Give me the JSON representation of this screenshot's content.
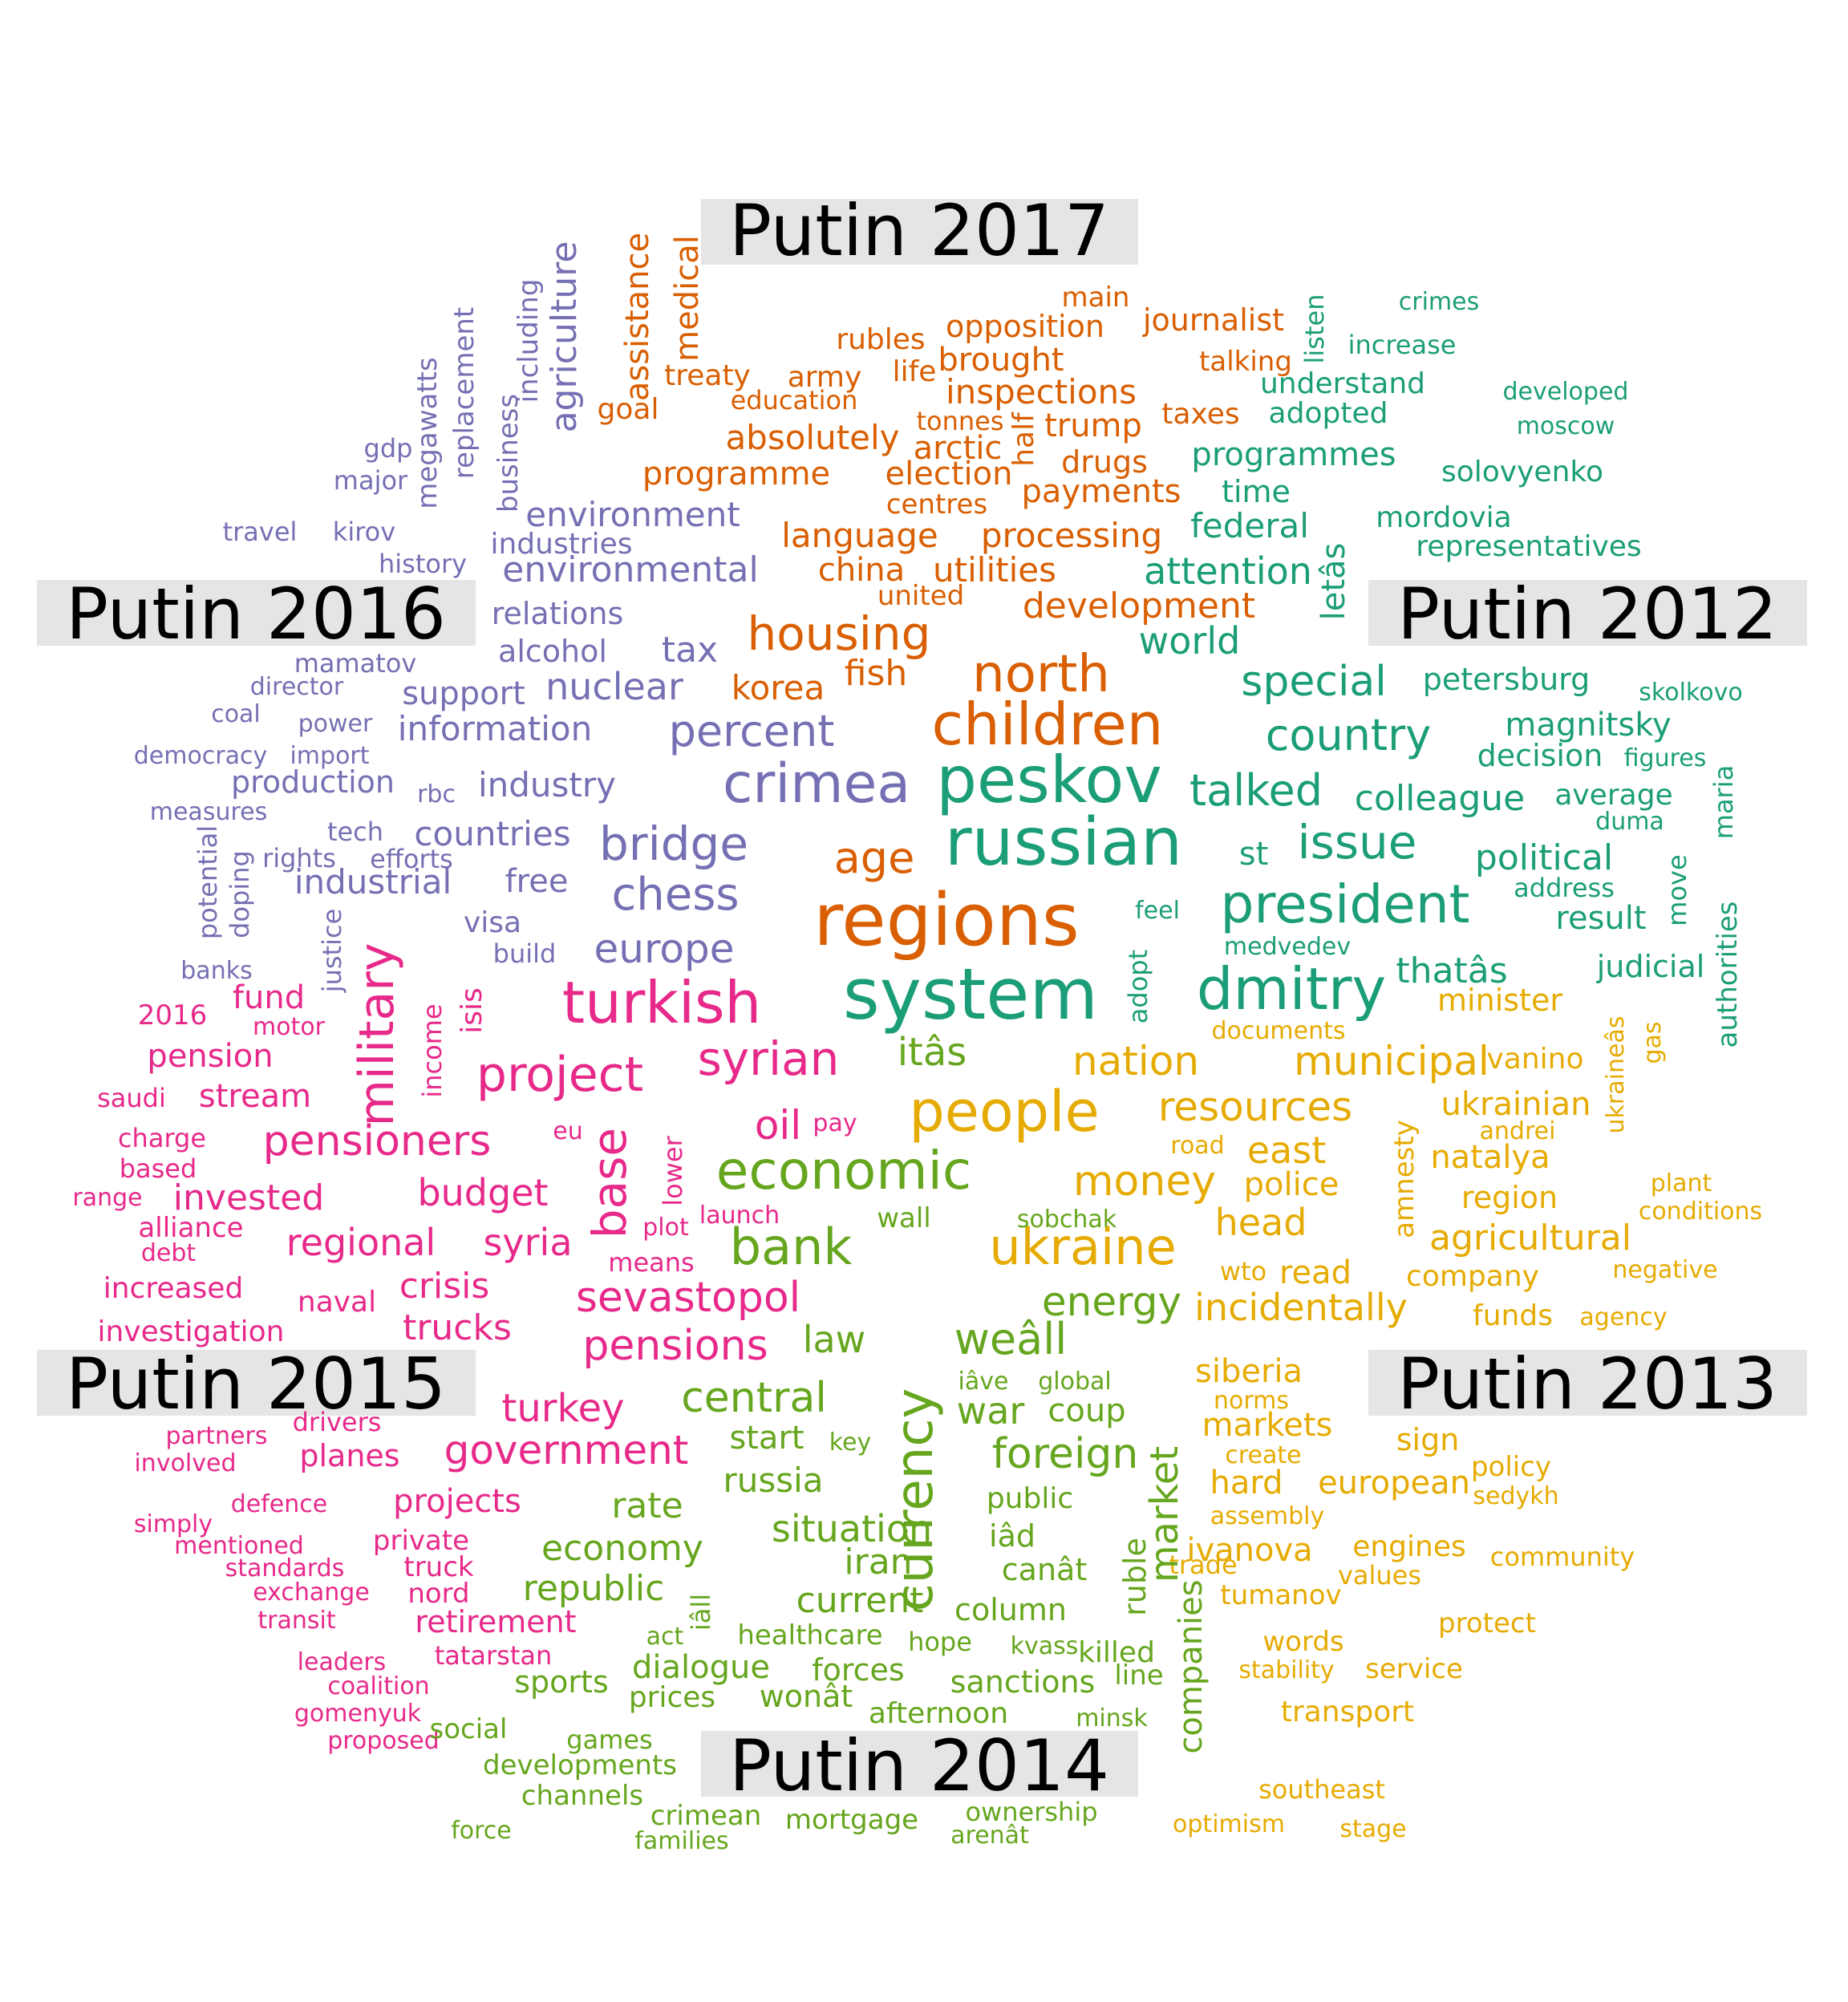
{
  "colors": {
    "y2012": "#1b9e77",
    "y2013": "#e6ab02",
    "y2014": "#66a61e",
    "y2015": "#e7298a",
    "y2016": "#7570b3",
    "y2017": "#d95f02",
    "label_box": "#e5e5e5"
  },
  "labels": [
    {
      "id": "putin-2017-label",
      "text": "Putin 2017"
    },
    {
      "id": "putin-2016-label",
      "text": "Putin 2016"
    },
    {
      "id": "putin-2012-label",
      "text": "Putin 2012"
    },
    {
      "id": "putin-2015-label",
      "text": "Putin 2015"
    },
    {
      "id": "putin-2013-label",
      "text": "Putin 2013"
    },
    {
      "id": "putin-2014-label",
      "text": "Putin 2014"
    }
  ],
  "words": {
    "y2017": [
      "assistance",
      "medical",
      "main",
      "journalist",
      "rubles",
      "opposition",
      "brought",
      "talking",
      "treaty",
      "army",
      "life",
      "inspections",
      "goal",
      "education",
      "tonnes",
      "half",
      "trump",
      "taxes",
      "absolutely",
      "arctic",
      "drugs",
      "programme",
      "election",
      "payments",
      "centres",
      "language",
      "processing",
      "china",
      "utilities",
      "united",
      "development",
      "housing",
      "fish",
      "north",
      "korea",
      "children",
      "age",
      "regions"
    ],
    "y2016": [
      "including",
      "agriculture",
      "replacement",
      "megawatts",
      "business",
      "gdp",
      "major",
      "environment",
      "travel",
      "kirov",
      "industries",
      "history",
      "environmental",
      "relations",
      "alcohol",
      "tax",
      "mamatov",
      "director",
      "support",
      "nuclear",
      "coal",
      "power",
      "information",
      "percent",
      "democracy",
      "import",
      "production",
      "rbc",
      "industry",
      "crimea",
      "measures",
      "tech",
      "countries",
      "bridge",
      "potential",
      "rights",
      "efforts",
      "doping",
      "free",
      "industrial",
      "chess",
      "justice",
      "visa",
      "build",
      "europe",
      "banks"
    ],
    "y2012": [
      "listen",
      "crimes",
      "increase",
      "understand",
      "developed",
      "adopted",
      "moscow",
      "programmes",
      "solovyenko",
      "time",
      "federal",
      "letâs",
      "mordovia",
      "representatives",
      "attention",
      "world",
      "special",
      "petersburg",
      "skolkovo",
      "country",
      "magnitsky",
      "peskov",
      "decision",
      "figures",
      "talked",
      "colleague",
      "average",
      "maria",
      "duma",
      "russian",
      "issue",
      "st",
      "political",
      "move",
      "address",
      "feel",
      "president",
      "result",
      "authorities",
      "medvedev",
      "thatâs",
      "judicial",
      "system",
      "dmitry",
      "adopt"
    ],
    "y2013": [
      "documents",
      "minister",
      "nation",
      "municipal",
      "vanino",
      "ukraineâs",
      "gas",
      "resources",
      "ukrainian",
      "people",
      "andrei",
      "amnesty",
      "road",
      "east",
      "natalya",
      "plant",
      "money",
      "police",
      "conditions",
      "region",
      "head",
      "agricultural",
      "ukraine",
      "wto",
      "read",
      "company",
      "negative",
      "incidentally",
      "funds",
      "agency",
      "siberia",
      "norms",
      "markets",
      "create",
      "sign",
      "hard",
      "european",
      "policy",
      "sedykh",
      "assembly",
      "ivanova",
      "engines",
      "community",
      "trade",
      "values",
      "tumanov",
      "protect",
      "words",
      "stability",
      "service",
      "transport",
      "southeast",
      "optimism",
      "stage"
    ],
    "y2015": [
      "military",
      "income",
      "isis",
      "turkish",
      "2016",
      "fund",
      "motor",
      "pension",
      "project",
      "syrian",
      "saudi",
      "stream",
      "oil",
      "pay",
      "charge",
      "pensioners",
      "eu",
      "base",
      "based",
      "lower",
      "budget",
      "range",
      "invested",
      "alliance",
      "regional",
      "syria",
      "launch",
      "debt",
      "plot",
      "means",
      "increased",
      "naval",
      "crisis",
      "sevastopol",
      "investigation",
      "trucks",
      "pensions",
      "drivers",
      "partners",
      "turkey",
      "involved",
      "planes",
      "government",
      "defence",
      "projects",
      "simply",
      "mentioned",
      "private",
      "standards",
      "truck",
      "exchange",
      "nord",
      "transit",
      "retirement",
      "leaders",
      "tatarstan",
      "coalition",
      "gomenyuk",
      "proposed"
    ],
    "y2014": [
      "itâs",
      "economic",
      "wall",
      "sobchak",
      "bank",
      "currency",
      "energy",
      "law",
      "weâll",
      "market",
      "iâve",
      "global",
      "central",
      "war",
      "coup",
      "start",
      "key",
      "foreign",
      "russia",
      "public",
      "rate",
      "situation",
      "iâd",
      "economy",
      "iran",
      "canât",
      "ruble",
      "republic",
      "iâll",
      "current",
      "column",
      "act",
      "healthcare",
      "hope",
      "kvass",
      "killed",
      "companies",
      "dialogue",
      "forces",
      "line",
      "sports",
      "sanctions",
      "prices",
      "wonât",
      "afternoon",
      "social",
      "games",
      "minsk",
      "developments",
      "channels",
      "crimean",
      "mortgage",
      "ownership",
      "arenât",
      "force",
      "families"
    ]
  }
}
